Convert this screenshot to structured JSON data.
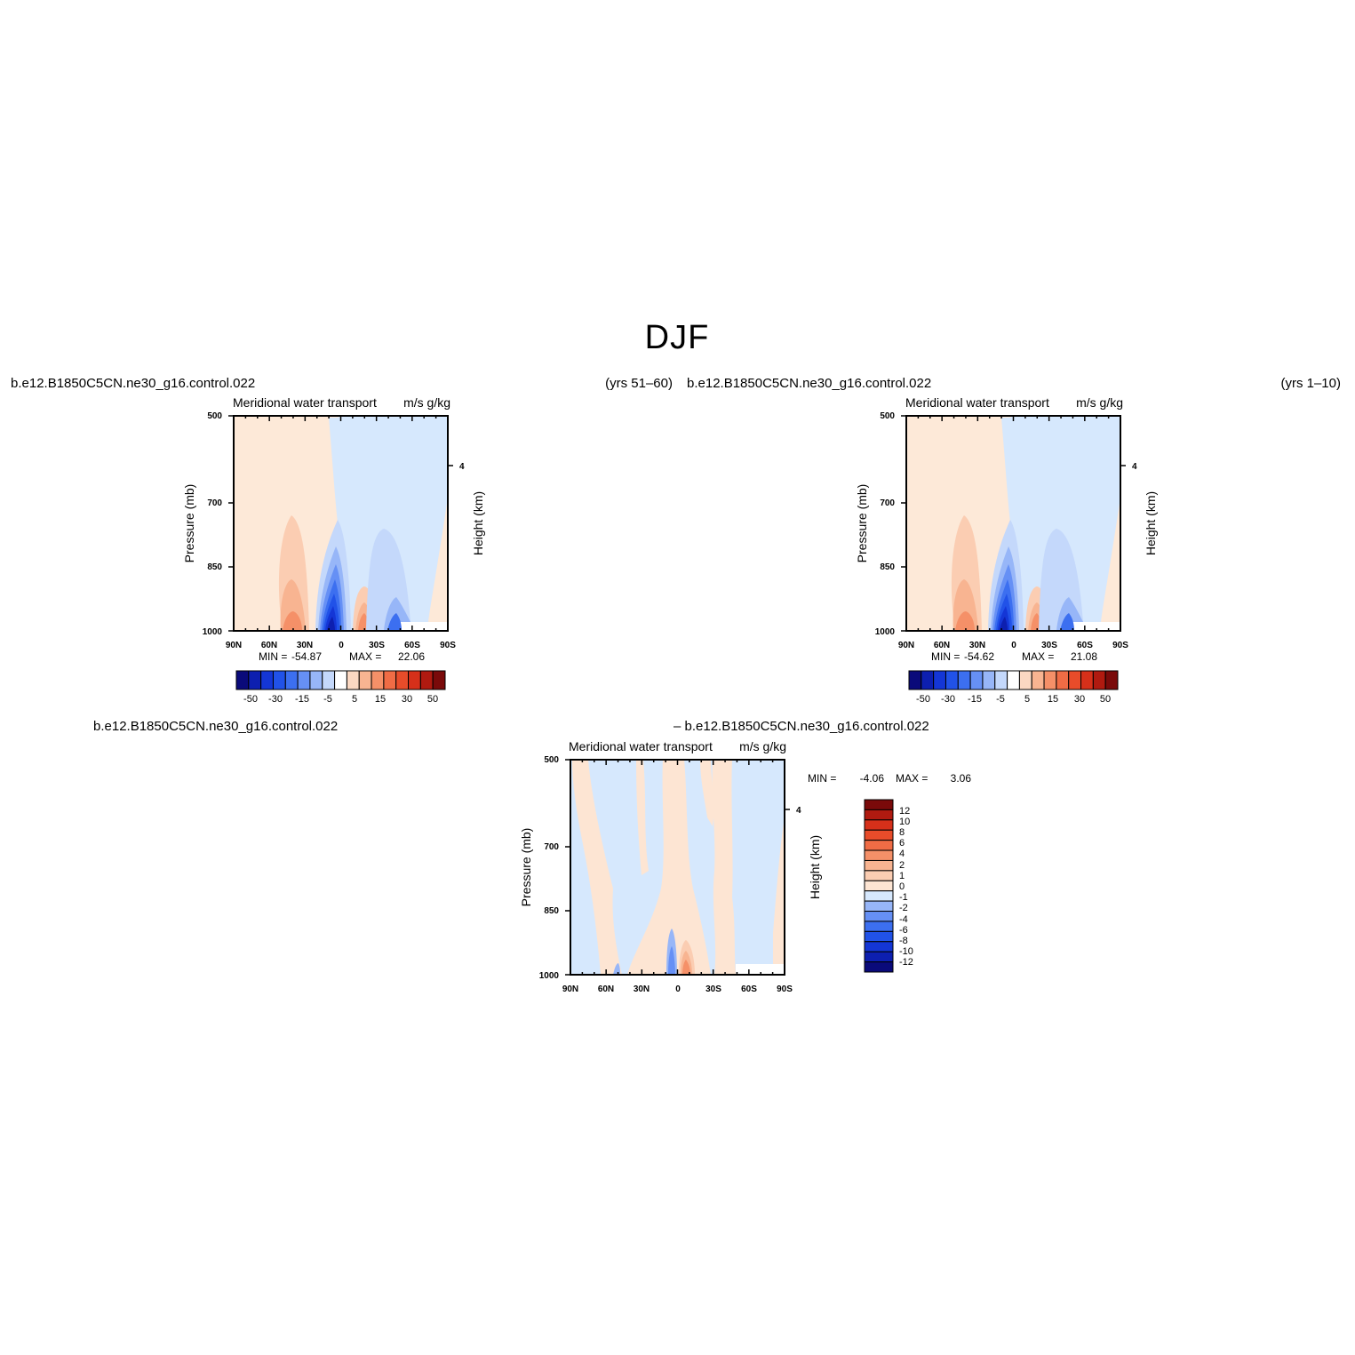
{
  "page_title": "DJF",
  "legend_colors": {
    "coarse": [
      "#0a0a7a",
      "#0d1fb0",
      "#1436d6",
      "#2152e8",
      "#3c6ff0",
      "#6690f5",
      "#97b6f8",
      "#c4d8fb",
      "#ffffff",
      "#fbd8c2",
      "#f8b491",
      "#f59068",
      "#f06c45",
      "#e84c2a",
      "#d6301a",
      "#b01a10",
      "#7a0a0a"
    ],
    "diff": [
      "#0a0a7a",
      "#0d1fb0",
      "#1436d6",
      "#2152e8",
      "#3c6ff0",
      "#6690f5",
      "#97b6f8",
      "#d6e8fd",
      "#fde5d3",
      "#fbcdb2",
      "#f8b491",
      "#f59068",
      "#f06c45",
      "#e84c2a",
      "#d6301a",
      "#b01a10",
      "#7a0a0a"
    ]
  },
  "chart_data": [
    {
      "id": "top-left",
      "type": "heatmap",
      "case_name": "b.e12.B1850C5CN.ne30_g16.control.022",
      "years": "(yrs 51–60)",
      "title": "Meridional water transport",
      "units": "m/s g/kg",
      "xlabel": "",
      "ylabel": "Pressure (mb)",
      "right_label": "Height (km)",
      "x_ticks": [
        "90N",
        "60N",
        "30N",
        "0",
        "30S",
        "60S",
        "90S"
      ],
      "y_ticks": [
        "500",
        "700",
        "850",
        "1000"
      ],
      "right_ticks": [
        "4"
      ],
      "min_label": "MIN =",
      "min": "-54.87",
      "max_label": "MAX =",
      "max": "22.06",
      "colorbar_labels": [
        "-50",
        "-30",
        "-15",
        "-5",
        "5",
        "15",
        "30",
        "50"
      ]
    },
    {
      "id": "top-right",
      "type": "heatmap",
      "case_name": "b.e12.B1850C5CN.ne30_g16.control.022",
      "years": "(yrs 1–10)",
      "title": "Meridional water transport",
      "units": "m/s g/kg",
      "xlabel": "",
      "ylabel": "Pressure (mb)",
      "right_label": "Height (km)",
      "x_ticks": [
        "90N",
        "60N",
        "30N",
        "0",
        "30S",
        "60S",
        "90S"
      ],
      "y_ticks": [
        "500",
        "700",
        "850",
        "1000"
      ],
      "right_ticks": [
        "4"
      ],
      "min_label": "MIN =",
      "min": "-54.62",
      "max_label": "MAX =",
      "max": "21.08",
      "colorbar_labels": [
        "-50",
        "-30",
        "-15",
        "-5",
        "5",
        "15",
        "30",
        "50"
      ]
    },
    {
      "id": "bottom-diff",
      "type": "heatmap",
      "case_name_left": "b.e12.B1850C5CN.ne30_g16.control.022",
      "case_name_right": "– b.e12.B1850C5CN.ne30_g16.control.022",
      "title": "Meridional water transport",
      "units": "m/s g/kg",
      "xlabel": "",
      "ylabel": "Pressure (mb)",
      "right_label": "Height (km)",
      "x_ticks": [
        "90N",
        "60N",
        "30N",
        "0",
        "30S",
        "60S",
        "90S"
      ],
      "y_ticks": [
        "500",
        "700",
        "850",
        "1000"
      ],
      "right_ticks": [
        "4"
      ],
      "min_label": "MIN =",
      "min": "-4.06",
      "max_label": "MAX =",
      "max": "3.06",
      "colorbar_labels": [
        "12",
        "10",
        "8",
        "6",
        "4",
        "2",
        "1",
        "0",
        "-1",
        "-2",
        "-4",
        "-6",
        "-8",
        "-10",
        "-12"
      ]
    }
  ]
}
